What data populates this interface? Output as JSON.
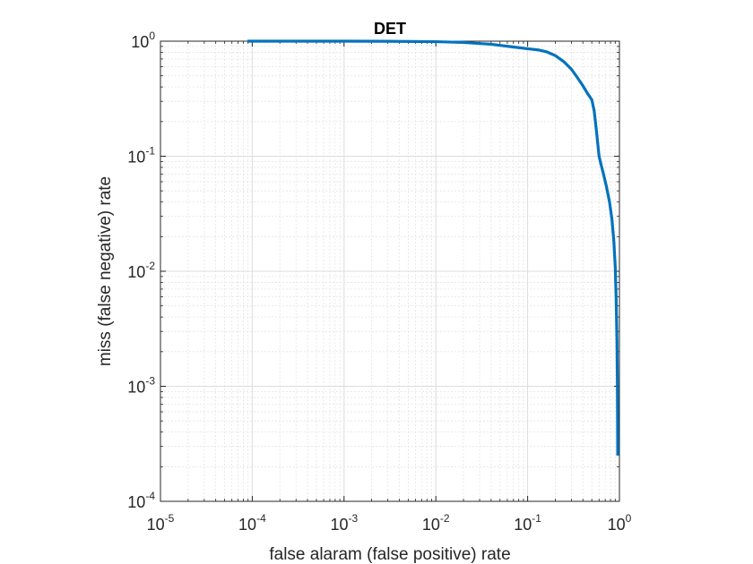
{
  "chart_data": {
    "type": "line",
    "title": "DET",
    "xlabel": "false alaram (false positive) rate",
    "ylabel": "miss (false negative) rate",
    "xscale": "log",
    "yscale": "log",
    "xlim": [
      1e-05,
      1
    ],
    "ylim": [
      0.0001,
      1
    ],
    "grid": true,
    "minor_grid": true,
    "x_ticks": [
      {
        "base": "10",
        "exp": "-5"
      },
      {
        "base": "10",
        "exp": "-4"
      },
      {
        "base": "10",
        "exp": "-3"
      },
      {
        "base": "10",
        "exp": "-2"
      },
      {
        "base": "10",
        "exp": "-1"
      },
      {
        "base": "10",
        "exp": "0"
      }
    ],
    "y_ticks": [
      {
        "base": "10",
        "exp": "-4"
      },
      {
        "base": "10",
        "exp": "-3"
      },
      {
        "base": "10",
        "exp": "-2"
      },
      {
        "base": "10",
        "exp": "-1"
      },
      {
        "base": "10",
        "exp": "0"
      }
    ],
    "series": [
      {
        "color": "#0072BD",
        "points": [
          [
            8.86e-05,
            1.0
          ],
          [
            0.0002,
            1.0
          ],
          [
            0.0005,
            1.0
          ],
          [
            0.001,
            1.0
          ],
          [
            0.003,
            0.998
          ],
          [
            0.01,
            0.99
          ],
          [
            0.02,
            0.975
          ],
          [
            0.04,
            0.94
          ],
          [
            0.07,
            0.89
          ],
          [
            0.1,
            0.86
          ],
          [
            0.13,
            0.84
          ],
          [
            0.16,
            0.81
          ],
          [
            0.2,
            0.75
          ],
          [
            0.25,
            0.66
          ],
          [
            0.3,
            0.57
          ],
          [
            0.35,
            0.48
          ],
          [
            0.4,
            0.41
          ],
          [
            0.45,
            0.35
          ],
          [
            0.5,
            0.31
          ],
          [
            0.53,
            0.25
          ],
          [
            0.56,
            0.17
          ],
          [
            0.6,
            0.1
          ],
          [
            0.63,
            0.085
          ],
          [
            0.67,
            0.07
          ],
          [
            0.72,
            0.055
          ],
          [
            0.78,
            0.04
          ],
          [
            0.83,
            0.028
          ],
          [
            0.87,
            0.018
          ],
          [
            0.9,
            0.011
          ],
          [
            0.92,
            0.006
          ],
          [
            0.94,
            0.0025
          ],
          [
            0.95,
            0.0011
          ],
          [
            0.955,
            0.0005
          ],
          [
            0.958,
            0.00025
          ]
        ]
      }
    ]
  }
}
